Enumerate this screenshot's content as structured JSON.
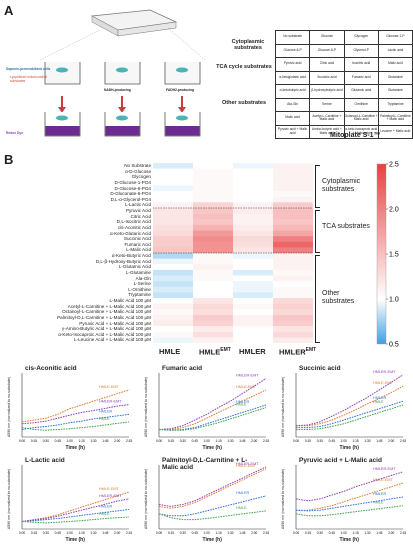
{
  "panel_a": {
    "letter": "A",
    "left_labels": {
      "cells_label": "Saponin-permeabilized cells",
      "substrates_label": "Lyophilized mitochondrial substrates",
      "nadh_label": "NADH-producing",
      "fadh_label": "FADH2-producing",
      "redox_label": "Redox Dye"
    },
    "groups": [
      "Cytoplasmic substrates",
      "TCA cycle substrates",
      "Other substrates"
    ],
    "table_rows": [
      [
        "No substrate",
        "Glucose",
        "Glycogen",
        "Glucose-1-P"
      ],
      [
        "Glucose-6-P",
        "Glucose-6-P",
        "Glycerol-P",
        "Lactic acid"
      ],
      [
        "Pyruvic acid",
        "Citric acid",
        "Isocitric acid",
        "Malic acid"
      ],
      [
        "α-ketoglutaric acid",
        "Succinic acid",
        "Fumaric acid",
        "Glutamine"
      ],
      [
        "α-ketobutyric acid",
        "β-hydroxybutyric acid",
        "Glutamic acid",
        "Glutamine"
      ],
      [
        "Ala-Gln",
        "Serine",
        "Ornithine",
        "Tryptamine"
      ],
      [
        "Malic acid",
        "Acetyl-L-Carnitine + Malic acid",
        "Octanoyl-L-Carnitine + Malic acid",
        "Palmitoyl-L-Carnitine + Malic acid"
      ],
      [
        "Pyruvic acid + Malic acid",
        "Amino-butyric acid + Malic acid",
        "α-keto-isocaproic acid + Malic acid",
        "Leucine + Malic acid"
      ]
    ],
    "plate_name": "Mitoplate S-1™"
  },
  "panel_b": {
    "letter": "B",
    "chart_data": [
      {
        "type": "heatmap",
        "title": "",
        "rows": [
          "No Substrate",
          "α-D-Glucose",
          "Glycogen",
          "D-Glucose-1-PO4",
          "D-Glucose-6-PO4",
          "D-Gluconate-6-PO4",
          "D,L-α-Glycerol-PO4",
          "L-Lactic Acid",
          "Pyruvic Acid",
          "Citric Acid",
          "D,L-Isocitric Acid",
          "cis-Aconitic Acid",
          "α-Keto-Glutaric Acid",
          "Succinic Acid",
          "Fumaric Acid",
          "L-Malic Acid",
          "α-Keto-Butyric Acid",
          "D,L-β-Hydroxy-Butyric Acid",
          "L-Glutamic Acid",
          "L-Glutamine",
          "Ala-Gln",
          "L-Serine",
          "L-Ornithine",
          "Tryptamine",
          "L-Malic Acid 100 μM",
          "Acetyl-L-Carnitine + L-Malic Acid 100 μM",
          "Octanoyl-L-Carnitine + L-Malic Acid 100 μM",
          "Palmitoyl-D,L-Carnitine + L-Malic Acid 100 μM",
          "Pyruvic Acid + L-Malic Acid 100 μM",
          "γ-Amino-Butyric Acid + L-Malic Acid 100 μM",
          "α-Keto-Isocaproic Acid + L-Malic Acid 100 μM",
          "L-Leucine Acid + L-Malic Acid 100 μM"
        ],
        "columns": [
          "HMLE",
          "HMLE EMT",
          "HMLER",
          "HMLER EMT"
        ],
        "column_labels": [
          {
            "base": "HMLE",
            "sup": ""
          },
          {
            "base": "HMLE",
            "sup": "EMT"
          },
          {
            "base": "HMLER",
            "sup": ""
          },
          {
            "base": "HMLER",
            "sup": "EMT"
          }
        ],
        "groups": [
          {
            "label": "Cytoplasmic substrates",
            "rows": [
              0,
              7
            ]
          },
          {
            "label": "TCA substrates",
            "rows": [
              8,
              15
            ]
          },
          {
            "label": "Other substrates",
            "rows": [
              16,
              31
            ]
          }
        ],
        "colorbar": {
          "ticks": [
            "2.5",
            "2.0",
            "1.5",
            "1.0",
            "0.5"
          ],
          "min": 0.5,
          "max": 2.5,
          "low_color": "#3ea0e0",
          "mid_color": "#ffffff",
          "high_color": "#e8403f"
        },
        "values": [
          [
            0.9,
            1.0,
            0.95,
            1.1
          ],
          [
            1.0,
            1.05,
            1.0,
            1.1
          ],
          [
            1.0,
            1.05,
            1.0,
            1.1
          ],
          [
            1.0,
            1.05,
            1.0,
            1.1
          ],
          [
            0.95,
            1.05,
            1.0,
            1.1
          ],
          [
            1.0,
            1.05,
            1.0,
            1.05
          ],
          [
            1.0,
            1.05,
            1.0,
            1.1
          ],
          [
            1.1,
            1.35,
            1.1,
            1.4
          ],
          [
            1.2,
            1.45,
            1.15,
            1.5
          ],
          [
            1.2,
            1.5,
            1.1,
            1.5
          ],
          [
            1.2,
            1.45,
            1.1,
            1.45
          ],
          [
            1.25,
            1.6,
            1.15,
            1.55
          ],
          [
            1.3,
            1.8,
            1.2,
            1.7
          ],
          [
            1.4,
            1.9,
            1.3,
            2.0
          ],
          [
            1.4,
            1.85,
            1.25,
            2.2
          ],
          [
            1.45,
            1.85,
            1.2,
            2.0
          ],
          [
            0.8,
            1.05,
            0.95,
            1.1
          ],
          [
            0.95,
            1.05,
            1.0,
            1.1
          ],
          [
            1.0,
            1.1,
            1.0,
            1.1
          ],
          [
            0.85,
            1.05,
            0.9,
            1.05
          ],
          [
            0.9,
            1.05,
            1.0,
            1.1
          ],
          [
            0.85,
            1.0,
            0.95,
            1.0
          ],
          [
            0.9,
            1.0,
            0.95,
            1.05
          ],
          [
            0.85,
            1.0,
            0.9,
            1.05
          ],
          [
            1.0,
            1.2,
            1.0,
            1.3
          ],
          [
            1.1,
            1.3,
            1.05,
            1.35
          ],
          [
            1.05,
            1.25,
            1.0,
            1.3
          ],
          [
            1.1,
            1.4,
            1.1,
            1.45
          ],
          [
            1.15,
            1.35,
            1.1,
            1.4
          ],
          [
            1.0,
            1.15,
            1.0,
            1.2
          ],
          [
            1.05,
            1.25,
            1.0,
            1.3
          ],
          [
            0.95,
            1.1,
            1.0,
            1.15
          ]
        ]
      },
      {
        "type": "line",
        "title": "cis-Aconitic acid",
        "xlabel": "Time (h)",
        "ylabel": "A590 nm (normalized to no-substrate)",
        "x_ticks": [
          "0:00",
          "0:15",
          "0:30",
          "0:45",
          "1:00",
          "1:15",
          "1:30",
          "1:45",
          "2:00",
          "2:15"
        ],
        "series": [
          {
            "name": "HMLE-EMT",
            "color": "#e07a2e",
            "values": [
              1.2,
              1.25,
              1.3,
              1.4,
              1.55,
              1.65,
              1.75,
              1.85,
              1.95,
              2.05
            ]
          },
          {
            "name": "HMLER-EMT",
            "color": "#8b3fb8",
            "values": [
              1.15,
              1.18,
              1.22,
              1.3,
              1.38,
              1.45,
              1.5,
              1.56,
              1.62,
              1.66
            ]
          },
          {
            "name": "HMLER",
            "color": "#2f6fdc",
            "values": [
              1.0,
              1.05,
              1.08,
              1.12,
              1.18,
              1.22,
              1.28,
              1.32,
              1.36,
              1.4
            ]
          },
          {
            "name": "HMLE",
            "color": "#3aa34a",
            "values": [
              1.05,
              1.0,
              0.98,
              1.0,
              1.02,
              1.05,
              1.08,
              1.12,
              1.16,
              1.2
            ]
          }
        ]
      },
      {
        "type": "line",
        "title": "Fumaric acid",
        "xlabel": "Time (h)",
        "ylabel": "A590 nm (normalized to no-substrate)",
        "x_ticks": [
          "0:00",
          "0:15",
          "0:30",
          "0:45",
          "1:00",
          "1:15",
          "1:30",
          "1:45",
          "2:00",
          "2:15"
        ],
        "series": [
          {
            "name": "HMLE-EMT",
            "color": "#e07a2e",
            "values": [
              1.0,
              1.0,
              1.05,
              1.15,
              1.3,
              1.45,
              1.6,
              1.75,
              1.9,
              2.05
            ]
          },
          {
            "name": "HMLER-EMT",
            "color": "#8b3fb8",
            "values": [
              1.0,
              1.02,
              1.1,
              1.25,
              1.4,
              1.58,
              1.75,
              1.95,
              2.15,
              2.35
            ]
          },
          {
            "name": "HMLER",
            "color": "#2f6fdc",
            "values": [
              1.0,
              0.98,
              1.0,
              1.05,
              1.15,
              1.25,
              1.35,
              1.45,
              1.55,
              1.65
            ]
          },
          {
            "name": "HMLE",
            "color": "#3aa34a",
            "values": [
              1.0,
              0.98,
              0.98,
              1.02,
              1.1,
              1.18,
              1.28,
              1.38,
              1.48,
              1.58
            ]
          }
        ]
      },
      {
        "type": "line",
        "title": "Succinic acid",
        "xlabel": "Time (h)",
        "ylabel": "A590 nm (normalized to no-substrate)",
        "x_ticks": [
          "0:00",
          "0:15",
          "0:30",
          "0:45",
          "1:00",
          "1:15",
          "1:30",
          "1:45",
          "2:00",
          "2:15"
        ],
        "series": [
          {
            "name": "HMLE-EMT",
            "color": "#e07a2e",
            "values": [
              1.1,
              1.1,
              1.15,
              1.25,
              1.38,
              1.52,
              1.68,
              1.82,
              1.98,
              2.15
            ]
          },
          {
            "name": "HMLER-EMT",
            "color": "#8b3fb8",
            "values": [
              1.1,
              1.12,
              1.2,
              1.35,
              1.5,
              1.68,
              1.85,
              2.05,
              2.25,
              2.45
            ]
          },
          {
            "name": "HMLER",
            "color": "#2f6fdc",
            "values": [
              1.05,
              1.05,
              1.08,
              1.15,
              1.25,
              1.35,
              1.45,
              1.55,
              1.65,
              1.75
            ]
          },
          {
            "name": "HMLE",
            "color": "#3aa34a",
            "values": [
              1.0,
              1.0,
              1.02,
              1.08,
              1.15,
              1.25,
              1.35,
              1.45,
              1.55,
              1.65
            ]
          }
        ]
      },
      {
        "type": "line",
        "title": "L-Lactic acid",
        "xlabel": "Time (h)",
        "ylabel": "A590 nm (normalized to no-substrate)",
        "x_ticks": [
          "0:00",
          "0:15",
          "0:30",
          "0:45",
          "1:00",
          "1:15",
          "1:30",
          "1:45",
          "2:00",
          "2:15"
        ],
        "series": [
          {
            "name": "HMLE-EMT",
            "color": "#e07a2e",
            "values": [
              1.0,
              1.05,
              1.1,
              1.18,
              1.28,
              1.38,
              1.48,
              1.58,
              1.68,
              1.78
            ]
          },
          {
            "name": "HMLER-EMT",
            "color": "#8b3fb8",
            "values": [
              1.0,
              1.04,
              1.08,
              1.14,
              1.22,
              1.3,
              1.38,
              1.46,
              1.54,
              1.6
            ]
          },
          {
            "name": "HMLER",
            "color": "#2f6fdc",
            "values": [
              1.0,
              1.02,
              1.05,
              1.08,
              1.12,
              1.16,
              1.2,
              1.24,
              1.28,
              1.32
            ]
          },
          {
            "name": "HMLE",
            "color": "#3aa34a",
            "values": [
              1.0,
              0.98,
              0.96,
              0.98,
              1.0,
              1.02,
              1.05,
              1.08,
              1.1,
              1.12
            ]
          }
        ]
      },
      {
        "type": "line",
        "title": "Palmitoyl-D,L-Carnitine + L-Malic acid",
        "xlabel": "Time (h)",
        "ylabel": "A590 nm (normalized to no-substrate)",
        "x_ticks": [
          "0:00",
          "0:15",
          "0:30",
          "0:45",
          "1:00",
          "1:15",
          "1:30",
          "1:45",
          "2:00",
          "2:15"
        ],
        "series": [
          {
            "name": "HMLE-EMT",
            "color": "#e07a2e",
            "values": [
              1.4,
              1.35,
              1.4,
              1.5,
              1.65,
              1.8,
              1.95,
              2.1,
              2.25,
              2.4
            ]
          },
          {
            "name": "HMLER-EMT",
            "color": "#8b3fb8",
            "values": [
              1.45,
              1.4,
              1.45,
              1.55,
              1.7,
              1.85,
              2.0,
              2.15,
              2.3,
              2.45
            ]
          },
          {
            "name": "HMLER",
            "color": "#2f6fdc",
            "values": [
              1.2,
              1.15,
              1.15,
              1.2,
              1.28,
              1.36,
              1.44,
              1.52,
              1.6,
              1.68
            ]
          },
          {
            "name": "HMLE",
            "color": "#3aa34a",
            "values": [
              1.2,
              1.1,
              1.05,
              1.05,
              1.08,
              1.12,
              1.16,
              1.2,
              1.24,
              1.28
            ]
          }
        ]
      },
      {
        "type": "line",
        "title": "Pyruvic acid + L-Malic acid",
        "xlabel": "Time (h)",
        "ylabel": "A590 nm (normalized to no-substrate)",
        "x_ticks": [
          "0:00",
          "0:15",
          "0:30",
          "0:45",
          "1:00",
          "1:15",
          "1:30",
          "1:45",
          "2:00",
          "2:15"
        ],
        "series": [
          {
            "name": "HMLE-EMT",
            "color": "#e07a2e",
            "values": [
              1.3,
              1.3,
              1.35,
              1.42,
              1.52,
              1.62,
              1.72,
              1.82,
              1.92,
              2.02
            ]
          },
          {
            "name": "HMLER-EMT",
            "color": "#8b3fb8",
            "values": [
              1.6,
              1.55,
              1.6,
              1.7,
              1.8,
              1.92,
              2.02,
              2.12,
              2.22,
              2.32
            ]
          },
          {
            "name": "HMLER",
            "color": "#2f6fdc",
            "values": [
              1.3,
              1.28,
              1.3,
              1.35,
              1.4,
              1.45,
              1.5,
              1.55,
              1.6,
              1.65
            ]
          },
          {
            "name": "HMLE",
            "color": "#3aa34a",
            "values": [
              1.2,
              1.15,
              1.15,
              1.18,
              1.22,
              1.26,
              1.3,
              1.34,
              1.38,
              1.42
            ]
          }
        ]
      }
    ]
  }
}
